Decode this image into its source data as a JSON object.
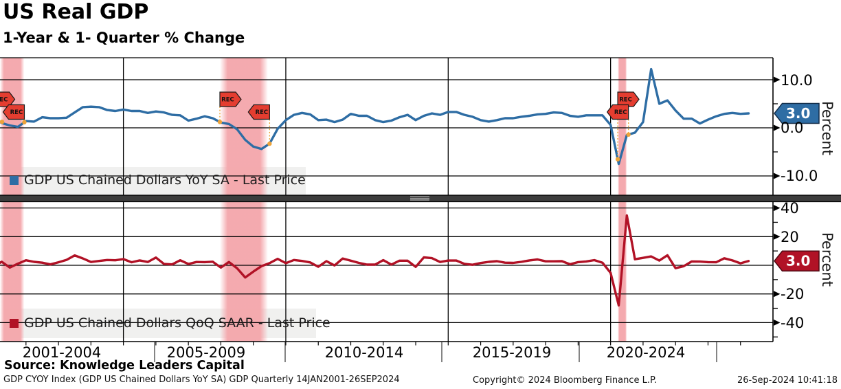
{
  "header": {
    "title": "US Real GDP",
    "subtitle": "1-Year & 1- Quarter % Change"
  },
  "panel_top": {
    "legend": "GDP US Chained Dollars YoY SA - Last Price",
    "last_value": "3.0",
    "axis_title": "Percent",
    "ticks": [
      "10.0",
      "0.0",
      "-10.0"
    ]
  },
  "panel_bottom": {
    "legend": "GDP US Chained Dollars QoQ SAAR - Last Price",
    "last_value": "3.0",
    "axis_title": "Percent",
    "ticks": [
      "40",
      "20",
      "-20",
      "-40"
    ]
  },
  "xaxis": {
    "periods": [
      "2001-2004",
      "2005-2009",
      "2010-2014",
      "2015-2019",
      "2020-2024"
    ]
  },
  "rec_marker_label": "REC",
  "footer": {
    "source": "Source: Knowledge Leaders Capital",
    "security_info": "GDP CYOY Index (GDP US Chained Dollars YoY SA) GDP  Quarterly 14JAN2001-26SEP2024",
    "copyright": "Copyright© 2024 Bloomberg Finance L.P.",
    "timestamp": "26-Sep-2024 10:41:18"
  },
  "colors": {
    "yoy_line": "#2e6da4",
    "qoq_line": "#b11226",
    "recession_band": "#f4a6ab",
    "rec_marker": "#e43d30",
    "event_dot": "#eda339",
    "separator": "#3c3c3c"
  },
  "chart_data": [
    {
      "type": "line",
      "title": "GDP US Chained Dollars YoY SA - Last Price",
      "ylabel": "Percent",
      "x_start": 2001.0,
      "x_step": 0.25,
      "x_range": [
        2001.2,
        2025.0
      ],
      "ylim": [
        -14,
        14.5
      ],
      "yticks": [
        10.0,
        0.0,
        -10.0
      ],
      "legend_position": "bottom-left",
      "grid": true,
      "last_price": 3.0,
      "color": "#2e6da4",
      "values": [
        2.2,
        1.0,
        0.5,
        0.2,
        1.4,
        1.3,
        2.2,
        2.0,
        2.0,
        2.1,
        3.2,
        4.3,
        4.4,
        4.3,
        3.7,
        3.5,
        3.8,
        3.5,
        3.5,
        3.1,
        3.4,
        3.2,
        2.7,
        2.6,
        1.5,
        1.9,
        2.4,
        2.0,
        1.1,
        0.8,
        -0.3,
        -2.5,
        -3.9,
        -4.4,
        -3.3,
        -0.2,
        1.6,
        2.7,
        3.1,
        2.8,
        1.6,
        1.7,
        1.2,
        1.7,
        2.9,
        2.5,
        2.5,
        1.6,
        1.2,
        1.5,
        2.2,
        2.7,
        1.6,
        2.5,
        3.0,
        2.7,
        3.3,
        3.3,
        2.7,
        2.3,
        1.6,
        1.3,
        1.6,
        2.0,
        2.0,
        2.3,
        2.5,
        2.8,
        2.9,
        3.2,
        3.1,
        2.5,
        2.3,
        2.6,
        2.6,
        2.6,
        0.6,
        -7.5,
        -1.5,
        -1.0,
        1.2,
        12.2,
        5.0,
        5.7,
        3.6,
        1.9,
        1.9,
        0.9,
        1.7,
        2.4,
        2.9,
        3.1,
        2.9,
        3.0
      ]
    },
    {
      "type": "line",
      "title": "GDP US Chained Dollars QoQ SAAR - Last Price",
      "ylabel": "Percent",
      "x_start": 2001.0,
      "x_step": 0.25,
      "x_range": [
        2001.2,
        2025.0
      ],
      "ylim": [
        -53,
        44
      ],
      "yticks": [
        40,
        20,
        0,
        -20,
        -40
      ],
      "legend_position": "bottom-left",
      "grid": true,
      "last_price": 3.0,
      "color": "#b11226",
      "values": [
        -1.3,
        2.5,
        -1.6,
        1.1,
        3.5,
        2.4,
        1.8,
        0.6,
        2.1,
        3.8,
        6.9,
        4.8,
        2.3,
        3.0,
        3.7,
        3.5,
        4.3,
        2.1,
        3.4,
        2.3,
        5.4,
        0.9,
        0.6,
        3.5,
        0.9,
        2.3,
        2.2,
        2.5,
        -1.6,
        2.3,
        -2.1,
        -8.5,
        -4.4,
        -0.6,
        1.5,
        4.5,
        1.5,
        3.7,
        3.0,
        2.0,
        -1.0,
        2.9,
        -0.1,
        4.7,
        3.2,
        1.7,
        0.5,
        0.5,
        3.6,
        0.5,
        3.2,
        3.2,
        -1.1,
        5.5,
        5.0,
        2.3,
        3.3,
        3.3,
        1.0,
        0.4,
        1.6,
        2.4,
        2.9,
        1.8,
        1.7,
        2.4,
        3.4,
        4.1,
        2.8,
        2.8,
        2.9,
        0.7,
        2.2,
        2.7,
        3.6,
        1.8,
        -5.3,
        -28.0,
        34.8,
        4.2,
        5.2,
        6.2,
        3.3,
        7.0,
        -2.0,
        -0.6,
        2.7,
        2.6,
        2.2,
        2.1,
        4.9,
        3.4,
        1.4,
        3.0
      ]
    }
  ],
  "recessions": [
    {
      "start": 2001.2,
      "end": 2001.95
    },
    {
      "start": 2007.97,
      "end": 2009.45
    },
    {
      "start": 2020.22,
      "end": 2020.5
    }
  ],
  "x_gridline_years": [
    2005,
    2010,
    2015,
    2020
  ]
}
